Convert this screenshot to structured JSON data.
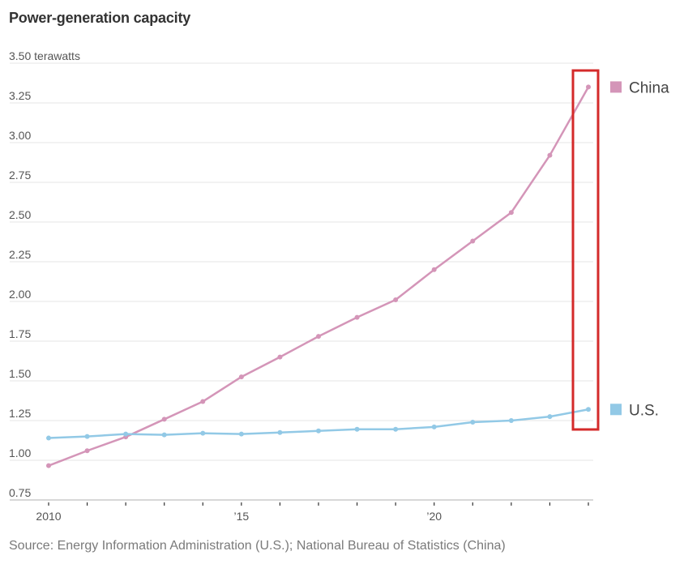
{
  "chart_data": {
    "type": "line",
    "title": "Power-generation capacity",
    "ylabel_unit": "terawatts",
    "x": [
      2010,
      2011,
      2012,
      2013,
      2014,
      2015,
      2016,
      2017,
      2018,
      2019,
      2020,
      2021,
      2022,
      2023,
      2024
    ],
    "x_tick_labels": [
      {
        "x": 2010,
        "label": "2010"
      },
      {
        "x": 2015,
        "label": "’15"
      },
      {
        "x": 2020,
        "label": "’20"
      }
    ],
    "y_ticks": [
      0.75,
      1.0,
      1.25,
      1.5,
      1.75,
      2.0,
      2.25,
      2.5,
      2.75,
      3.0,
      3.25,
      3.5
    ],
    "y_tick_labels": [
      "0.75",
      "1.00",
      "1.25",
      "1.50",
      "1.75",
      "2.00",
      "2.25",
      "2.50",
      "2.75",
      "3.00",
      "3.25",
      "3.50 terawatts"
    ],
    "ylim": [
      0.75,
      3.5
    ],
    "grid": true,
    "legend_placement": "right, at line ends",
    "series": [
      {
        "name": "China",
        "color": "#d495b8",
        "values": [
          0.966,
          1.06,
          1.147,
          1.258,
          1.37,
          1.525,
          1.65,
          1.78,
          1.9,
          2.01,
          2.2,
          2.38,
          2.56,
          2.92,
          3.35
        ]
      },
      {
        "name": "U.S.",
        "color": "#92c9e6",
        "values": [
          1.14,
          1.15,
          1.165,
          1.16,
          1.17,
          1.165,
          1.175,
          1.185,
          1.195,
          1.195,
          1.21,
          1.24,
          1.25,
          1.275,
          1.32
        ]
      }
    ],
    "highlight": {
      "x": 2024,
      "color": "#d42a2a"
    },
    "source": "Source: Energy Information Administration (U.S.); National Bureau of Statistics (China)"
  }
}
